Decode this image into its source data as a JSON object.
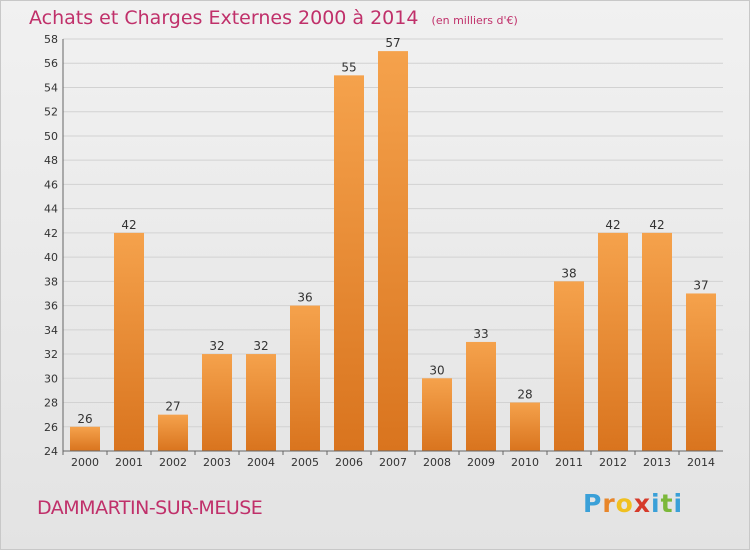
{
  "header": {
    "title": "Achats et Charges Externes 2000 à 2014",
    "unit": "(en milliers d'€)"
  },
  "footer": {
    "town": "DAMMARTIN-SUR-MEUSE",
    "logo_letters": [
      "P",
      "r",
      "o",
      "x",
      "i",
      "t",
      "i"
    ]
  },
  "colors": {
    "title": "#c0306a",
    "bar_light": "#f5a24c",
    "bar_dark": "#d9741e",
    "logo": [
      "#3aa0d8",
      "#e8862a",
      "#f0c020",
      "#d63a2a",
      "#3aa0d8",
      "#7cb83a",
      "#3aa0d8"
    ]
  },
  "chart_data": {
    "type": "bar",
    "categories": [
      "2000",
      "2001",
      "2002",
      "2003",
      "2004",
      "2005",
      "2006",
      "2007",
      "2008",
      "2009",
      "2010",
      "2011",
      "2012",
      "2013",
      "2014"
    ],
    "values": [
      26,
      42,
      27,
      32,
      32,
      36,
      55,
      57,
      30,
      33,
      28,
      38,
      42,
      42,
      37
    ],
    "title": "Achats et Charges Externes 2000 à 2014",
    "xlabel": "",
    "ylabel": "",
    "ylim": [
      24,
      58
    ],
    "yticks": [
      24,
      26,
      28,
      30,
      32,
      34,
      36,
      38,
      40,
      42,
      44,
      46,
      48,
      50,
      52,
      54,
      56,
      58
    ],
    "grid": true,
    "legend": "none"
  }
}
